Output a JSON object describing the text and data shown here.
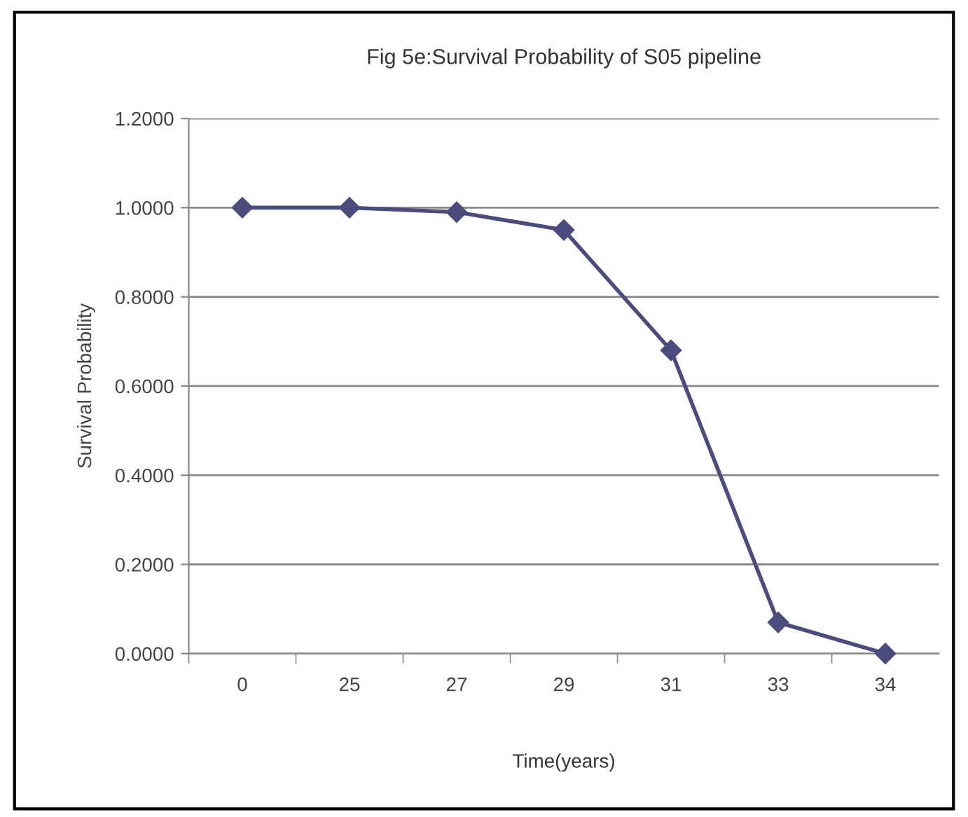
{
  "chart_data": {
    "type": "line",
    "title": "Fig 5e:Survival Probability of S05 pipeline",
    "xlabel": "Time(years)",
    "ylabel": "Survival Probability",
    "categories": [
      "0",
      "25",
      "27",
      "29",
      "31",
      "33",
      "34"
    ],
    "series": [
      {
        "color": "#4b4c7c",
        "values": [
          1.0,
          1.0,
          0.99,
          0.95,
          0.68,
          0.07,
          0.0
        ]
      }
    ],
    "ylim": [
      0,
      1.2
    ],
    "yticks": [
      {
        "value": 0,
        "label": "0.0000"
      },
      {
        "value": 0.2,
        "label": "0.2000"
      },
      {
        "value": 0.4,
        "label": "0.4000"
      },
      {
        "value": 0.6,
        "label": "0.6000"
      },
      {
        "value": 0.8,
        "label": "0.8000"
      },
      {
        "value": 1.0,
        "label": "1.0000"
      },
      {
        "value": 1.2,
        "label": "1.2000"
      }
    ],
    "grid": "y",
    "marker": "diamond",
    "line_style": "solid",
    "legend": false
  }
}
